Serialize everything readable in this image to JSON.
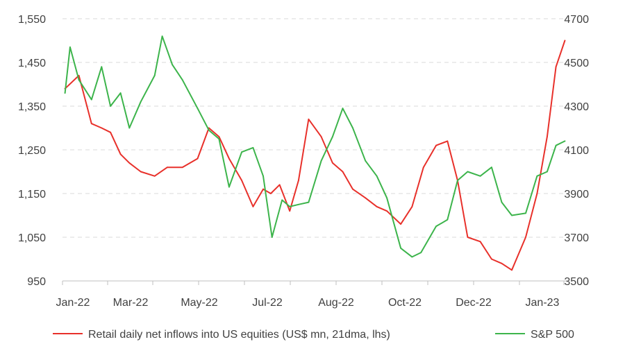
{
  "chart_data": {
    "type": "line",
    "title": "",
    "grid": true,
    "legend_position": "bottom",
    "x_tick_labels": [
      "Jan-22",
      "Mar-22",
      "May-22",
      "Jul-22",
      "Aug-22",
      "Oct-22",
      "Dec-22",
      "Jan-23"
    ],
    "y_left": {
      "ticks": [
        "950",
        "1,050",
        "1,150",
        "1,250",
        "1,350",
        "1,450",
        "1,550"
      ],
      "range": [
        950,
        1550
      ]
    },
    "y_right": {
      "ticks": [
        "3500",
        "3700",
        "3900",
        "4100",
        "4300",
        "4500",
        "4700"
      ],
      "range": [
        3500,
        4700
      ]
    },
    "series": [
      {
        "name": "Retail daily net inflows into US equities (US$ mn, 21dma, lhs)",
        "axis": "left",
        "color": "#e8302a",
        "x": [
          "2022-01-03",
          "2022-01-14",
          "2022-01-24",
          "2022-02-01",
          "2022-02-08",
          "2022-02-16",
          "2022-02-23",
          "2022-03-04",
          "2022-03-15",
          "2022-03-25",
          "2022-04-06",
          "2022-04-18",
          "2022-04-27",
          "2022-05-05",
          "2022-05-13",
          "2022-05-23",
          "2022-06-01",
          "2022-06-09",
          "2022-06-15",
          "2022-06-22",
          "2022-06-30",
          "2022-07-07",
          "2022-07-15",
          "2022-07-25",
          "2022-08-03",
          "2022-08-11",
          "2022-08-19",
          "2022-08-29",
          "2022-09-07",
          "2022-09-15",
          "2022-09-26",
          "2022-10-05",
          "2022-10-14",
          "2022-10-24",
          "2022-11-02",
          "2022-11-10",
          "2022-11-18",
          "2022-11-28",
          "2022-12-07",
          "2022-12-15",
          "2022-12-23",
          "2023-01-03",
          "2023-01-12",
          "2023-01-20",
          "2023-01-27",
          "2023-02-03"
        ],
        "values": [
          1390,
          1420,
          1310,
          1300,
          1290,
          1240,
          1220,
          1200,
          1190,
          1210,
          1210,
          1230,
          1300,
          1280,
          1230,
          1180,
          1120,
          1160,
          1150,
          1170,
          1110,
          1180,
          1320,
          1280,
          1220,
          1200,
          1160,
          1140,
          1120,
          1110,
          1080,
          1120,
          1210,
          1260,
          1270,
          1180,
          1050,
          1040,
          1000,
          990,
          975,
          1050,
          1150,
          1280,
          1440,
          1500
        ]
      },
      {
        "name": "S&P 500",
        "axis": "right",
        "color": "#3cb44b",
        "x": [
          "2022-01-03",
          "2022-01-07",
          "2022-01-14",
          "2022-01-24",
          "2022-02-01",
          "2022-02-08",
          "2022-02-16",
          "2022-02-23",
          "2022-03-04",
          "2022-03-15",
          "2022-03-21",
          "2022-03-29",
          "2022-04-06",
          "2022-04-18",
          "2022-04-27",
          "2022-05-05",
          "2022-05-13",
          "2022-05-23",
          "2022-06-01",
          "2022-06-09",
          "2022-06-16",
          "2022-06-24",
          "2022-06-30",
          "2022-07-07",
          "2022-07-15",
          "2022-07-25",
          "2022-08-03",
          "2022-08-11",
          "2022-08-19",
          "2022-08-29",
          "2022-09-07",
          "2022-09-15",
          "2022-09-26",
          "2022-10-05",
          "2022-10-12",
          "2022-10-24",
          "2022-11-02",
          "2022-11-10",
          "2022-11-18",
          "2022-11-28",
          "2022-12-07",
          "2022-12-15",
          "2022-12-23",
          "2023-01-03",
          "2023-01-12",
          "2023-01-20",
          "2023-01-27",
          "2023-02-03"
        ],
        "values": [
          4360,
          4570,
          4420,
          4330,
          4480,
          4300,
          4360,
          4200,
          4320,
          4440,
          4620,
          4490,
          4420,
          4290,
          4190,
          4150,
          3930,
          4090,
          4110,
          3980,
          3700,
          3870,
          3840,
          3850,
          3860,
          4050,
          4160,
          4290,
          4200,
          4050,
          3980,
          3880,
          3650,
          3610,
          3630,
          3750,
          3780,
          3960,
          4000,
          3980,
          4020,
          3860,
          3800,
          3810,
          3980,
          4000,
          4120,
          4140
        ]
      }
    ]
  }
}
